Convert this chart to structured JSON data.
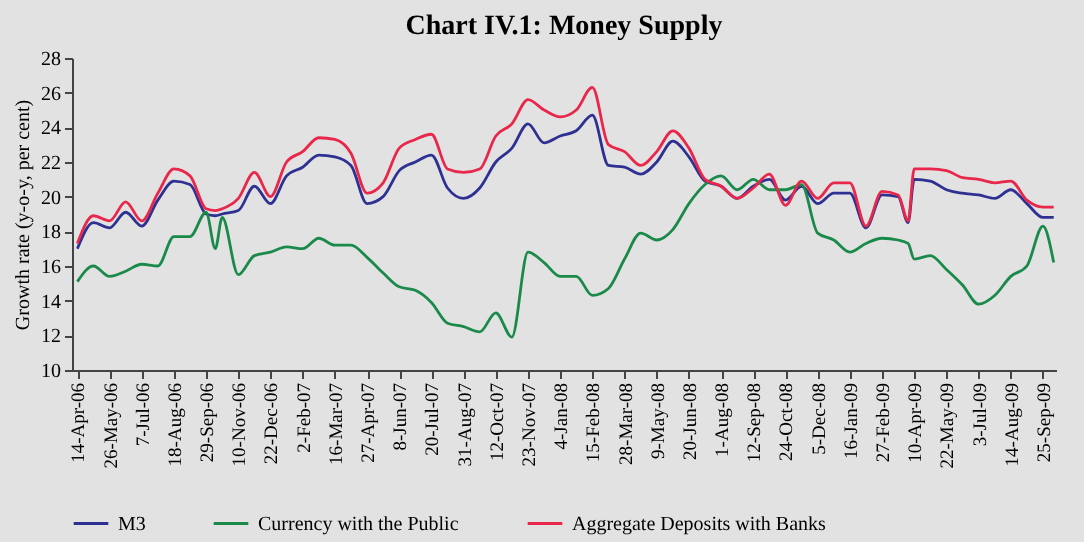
{
  "chart_data": {
    "type": "line",
    "title": "Chart IV.1: Money Supply",
    "ylabel": "Growth rate (y-o-y, per cent)",
    "x": [
      "2006-04-14",
      "2006-05-05",
      "2006-05-26",
      "2006-06-16",
      "2006-07-07",
      "2006-07-28",
      "2006-08-18",
      "2006-09-08",
      "2006-09-29",
      "2006-10-11",
      "2006-10-20",
      "2006-11-10",
      "2006-12-01",
      "2006-12-22",
      "2007-01-12",
      "2007-02-02",
      "2007-02-23",
      "2007-03-16",
      "2007-04-06",
      "2007-04-27",
      "2007-05-18",
      "2007-06-08",
      "2007-06-29",
      "2007-07-20",
      "2007-08-10",
      "2007-08-31",
      "2007-09-21",
      "2007-10-12",
      "2007-11-02",
      "2007-11-23",
      "2007-12-14",
      "2008-01-04",
      "2008-01-25",
      "2008-02-15",
      "2008-03-07",
      "2008-03-28",
      "2008-04-18",
      "2008-05-09",
      "2008-05-30",
      "2008-06-20",
      "2008-07-11",
      "2008-08-01",
      "2008-08-22",
      "2008-09-12",
      "2008-10-03",
      "2008-10-24",
      "2008-11-14",
      "2008-12-05",
      "2008-12-26",
      "2009-01-16",
      "2009-02-06",
      "2009-02-27",
      "2009-03-20",
      "2009-04-02",
      "2009-04-10",
      "2009-05-01",
      "2009-05-22",
      "2009-06-12",
      "2009-07-03",
      "2009-07-24",
      "2009-08-14",
      "2009-09-04",
      "2009-09-25",
      "2009-10-09"
    ],
    "series": [
      {
        "name": "M3",
        "color": "#2e3192",
        "values": [
          17.0,
          18.5,
          18.2,
          19.1,
          18.3,
          19.8,
          20.9,
          20.7,
          19.0,
          18.9,
          19.0,
          19.2,
          20.6,
          19.6,
          21.2,
          21.7,
          22.4,
          22.3,
          21.8,
          19.6,
          20.0,
          21.5,
          22.0,
          22.4,
          20.5,
          19.9,
          20.5,
          22.0,
          22.8,
          24.2,
          23.1,
          23.5,
          23.8,
          24.7,
          21.8,
          21.7,
          21.3,
          22.0,
          23.2,
          22.3,
          20.9,
          20.6,
          19.9,
          20.6,
          21.0,
          19.8,
          20.6,
          19.6,
          20.2,
          20.2,
          18.2,
          20.1,
          20.0,
          18.5,
          21.0,
          20.9,
          20.4,
          20.2,
          20.1,
          19.9,
          20.4,
          19.6,
          18.8,
          18.8
        ]
      },
      {
        "name": "Currency with the Public",
        "color": "#1a8a4a",
        "values": [
          15.1,
          16.0,
          15.4,
          15.7,
          16.1,
          16.0,
          17.7,
          17.7,
          19.1,
          17.0,
          18.8,
          15.5,
          16.6,
          16.8,
          17.1,
          17.0,
          17.6,
          17.2,
          17.2,
          16.5,
          15.6,
          14.8,
          14.6,
          13.9,
          12.7,
          12.5,
          12.2,
          13.3,
          11.9,
          16.8,
          16.2,
          15.4,
          15.4,
          14.3,
          14.7,
          16.4,
          17.9,
          17.5,
          18.1,
          19.6,
          20.7,
          21.2,
          20.4,
          21.0,
          20.4,
          20.4,
          20.7,
          17.9,
          17.5,
          16.8,
          17.3,
          17.6,
          17.5,
          17.3,
          16.4,
          16.6,
          15.8,
          14.9,
          13.8,
          14.3,
          15.4,
          16.0,
          18.3,
          16.2
        ]
      },
      {
        "name": "Aggregate Deposits with Banks",
        "color": "#e8274a",
        "values": [
          17.3,
          18.9,
          18.6,
          19.7,
          18.6,
          20.2,
          21.6,
          21.2,
          19.3,
          19.2,
          19.3,
          19.9,
          21.4,
          20.0,
          22.0,
          22.6,
          23.4,
          23.3,
          22.5,
          20.2,
          20.8,
          22.8,
          23.3,
          23.6,
          21.6,
          21.4,
          21.6,
          23.5,
          24.2,
          25.6,
          25.0,
          24.6,
          25.0,
          26.3,
          23.0,
          22.6,
          21.8,
          22.6,
          23.8,
          22.8,
          21.0,
          20.6,
          19.9,
          20.5,
          21.3,
          19.5,
          20.9,
          19.9,
          20.8,
          20.8,
          18.3,
          20.3,
          20.1,
          18.6,
          21.6,
          21.6,
          21.5,
          21.1,
          21.0,
          20.8,
          20.9,
          19.8,
          19.4,
          19.4
        ]
      }
    ],
    "xlim": [
      "2006-04-07",
      "2009-10-12"
    ],
    "xticks": [
      {
        "value": "2006-04-14",
        "label": "14-Apr-06"
      },
      {
        "value": "2006-05-26",
        "label": "26-May-06"
      },
      {
        "value": "2006-07-07",
        "label": "7-Jul-06"
      },
      {
        "value": "2006-08-18",
        "label": "18-Aug-06"
      },
      {
        "value": "2006-09-29",
        "label": "29-Sep-06"
      },
      {
        "value": "2006-11-10",
        "label": "10-Nov-06"
      },
      {
        "value": "2006-12-22",
        "label": "22-Dec-06"
      },
      {
        "value": "2007-02-02",
        "label": "2-Feb-07"
      },
      {
        "value": "2007-03-16",
        "label": "16-Mar-07"
      },
      {
        "value": "2007-04-27",
        "label": "27-Apr-07"
      },
      {
        "value": "2007-06-08",
        "label": "8-Jun-07"
      },
      {
        "value": "2007-07-20",
        "label": "20-Jul-07"
      },
      {
        "value": "2007-08-31",
        "label": "31-Aug-07"
      },
      {
        "value": "2007-10-12",
        "label": "12-Oct-07"
      },
      {
        "value": "2007-11-23",
        "label": "23-Nov-07"
      },
      {
        "value": "2008-01-04",
        "label": "4-Jan-08"
      },
      {
        "value": "2008-02-15",
        "label": "15-Feb-08"
      },
      {
        "value": "2008-03-28",
        "label": "28-Mar-08"
      },
      {
        "value": "2008-05-09",
        "label": "9-May-08"
      },
      {
        "value": "2008-06-20",
        "label": "20-Jun-08"
      },
      {
        "value": "2008-08-01",
        "label": "1-Aug-08"
      },
      {
        "value": "2008-09-12",
        "label": "12-Sep-08"
      },
      {
        "value": "2008-10-24",
        "label": "24-Oct-08"
      },
      {
        "value": "2008-12-05",
        "label": "5-Dec-08"
      },
      {
        "value": "2009-01-16",
        "label": "16-Jan-09"
      },
      {
        "value": "2009-02-27",
        "label": "27-Feb-09"
      },
      {
        "value": "2009-04-10",
        "label": "10-Apr-09"
      },
      {
        "value": "2009-05-22",
        "label": "22-May-09"
      },
      {
        "value": "2009-07-03",
        "label": "3-Jul-09"
      },
      {
        "value": "2009-08-14",
        "label": "14-Aug-09"
      },
      {
        "value": "2009-09-25",
        "label": "25-Sep-09"
      }
    ],
    "ylim": [
      10,
      28
    ],
    "yticks": [
      10,
      12,
      14,
      16,
      18,
      20,
      22,
      24,
      26,
      28
    ],
    "legend": "bottom",
    "marker": "none",
    "line_style": "solid"
  }
}
